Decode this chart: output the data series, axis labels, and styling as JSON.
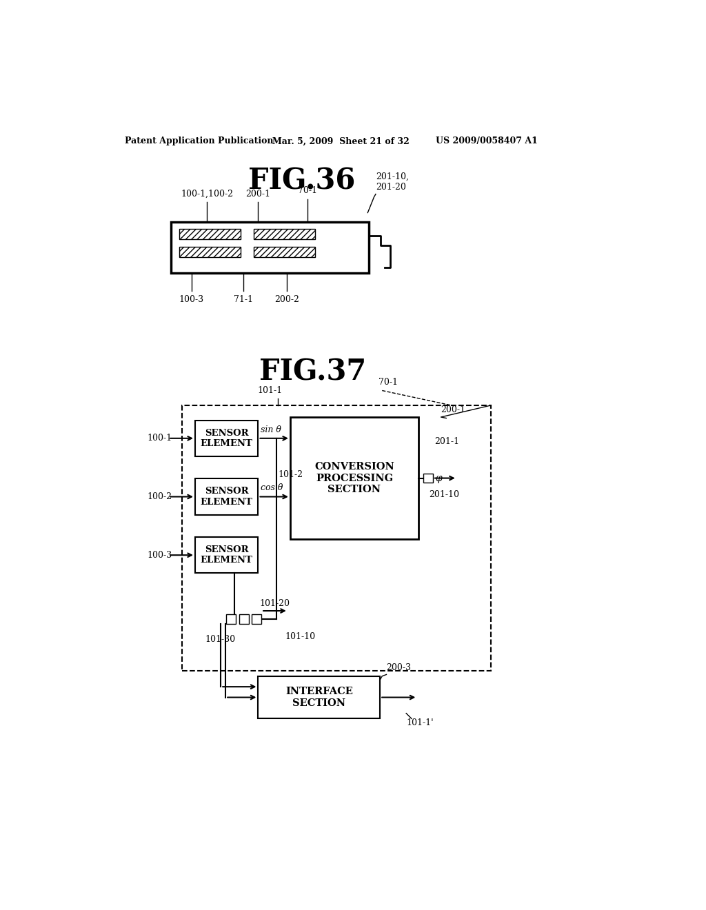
{
  "bg_color": "#ffffff",
  "header_left": "Patent Application Publication",
  "header_mid": "Mar. 5, 2009  Sheet 21 of 32",
  "header_right": "US 2009/0058407 A1",
  "fig36_title": "FIG.36",
  "fig37_title": "FIG.37",
  "fig36_labels": {
    "100_1_100_2": "100-1,100-2",
    "200_1": "200-1",
    "70_1": "70-1",
    "201_10_20": "201-10,\n201-20",
    "100_3": "100-3",
    "71_1": "71-1",
    "200_2": "200-2"
  },
  "fig37_labels": {
    "70_1": "70-1",
    "100_1": "100-1",
    "100_2": "100-2",
    "100_3": "100-3",
    "101_1": "101-1",
    "101_2": "101-2",
    "101_20": "101-20",
    "101_10": "101-10",
    "101_30": "101-30",
    "200_1": "200-1",
    "200_3": "200-3",
    "201_1": "201-1",
    "201_10": "201-10",
    "101_1p": "101-1'",
    "sin_theta": "sin θ",
    "cos_theta": "cos θ",
    "phi": "φ",
    "conversion": "CONVERSION\nPROCESSING\nSECTION",
    "interface": "INTERFACE\nSECTION",
    "sensor_element": "SENSOR\nELEMENT"
  }
}
